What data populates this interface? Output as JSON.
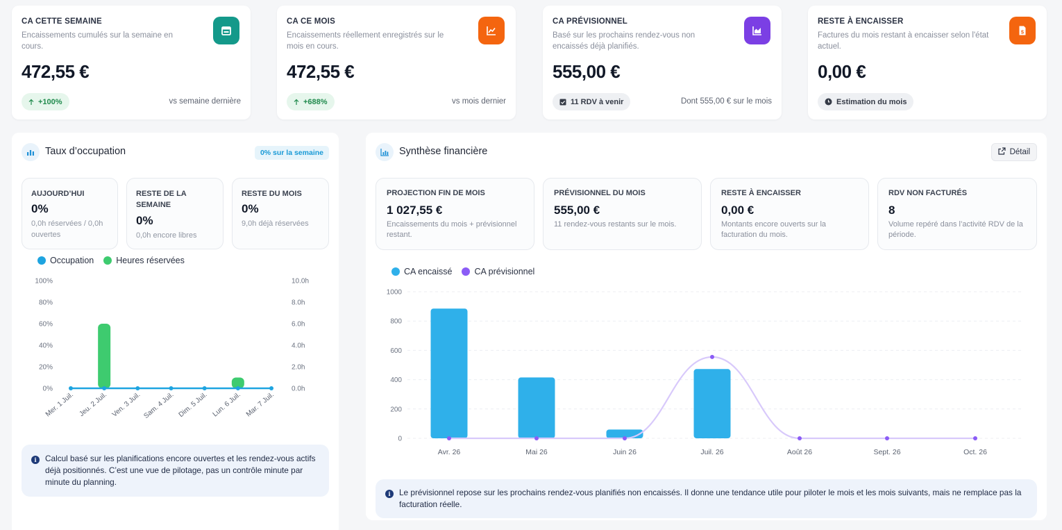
{
  "kpis": [
    {
      "title": "CA CETTE SEMAINE",
      "desc": "Encaissements cumulés sur la semaine en cours.",
      "value": "472,55 €",
      "badge": "+100%",
      "badge_icon": "arrow-up-icon",
      "compare": "vs semaine dernière",
      "icon": "calendar-icon",
      "color": "#14998a"
    },
    {
      "title": "CA CE MOIS",
      "desc": "Encaissements réellement enregistrés sur le mois en cours.",
      "value": "472,55 €",
      "badge": "+688%",
      "badge_icon": "arrow-up-icon",
      "compare": "vs mois dernier",
      "icon": "trend-line-icon",
      "color": "#f4650f"
    },
    {
      "title": "CA PRÉVISIONNEL",
      "desc": "Basé sur les prochains rendez-vous non encaissés déjà planifiés.",
      "value": "555,00 €",
      "badge": "11 RDV à venir",
      "badge_icon": "calendar-check-icon",
      "compare": "Dont 555,00 € sur le mois",
      "icon": "area-chart-icon",
      "color": "#7b3fe4"
    },
    {
      "title": "RESTE À ENCAISSER",
      "desc": "Factures du mois restant à encaisser selon l'état actuel.",
      "value": "0,00 €",
      "badge": "Estimation du mois",
      "badge_icon": "clock-icon",
      "compare": "",
      "icon": "invoice-dollar-icon",
      "color": "#f4650f"
    }
  ],
  "occupation": {
    "title": "Taux d’occupation",
    "chip": "0% sur la semaine",
    "stats": [
      {
        "title": "AUJOURD’HUI",
        "value": "0%",
        "sub": "0,0h réservées / 0,0h ouvertes"
      },
      {
        "title": "RESTE DE LA SEMAINE",
        "value": "0%",
        "sub": "0,0h encore libres"
      },
      {
        "title": "RESTE DU MOIS",
        "value": "0%",
        "sub": "9,0h déjà réservées"
      }
    ],
    "legend": [
      "Occupation",
      "Heures réservées"
    ],
    "colors": {
      "occupation": "#1ea4e0",
      "hours": "#3ecb6f"
    },
    "info": "Calcul basé sur les planifications encore ouvertes et les rendez-vous actifs déjà positionnés. C’est une vue de pilotage, pas un contrôle minute par minute du planning."
  },
  "finance": {
    "title": "Synthèse financière",
    "detail_label": "Détail",
    "tiles": [
      {
        "title": "PROJECTION FIN DE MOIS",
        "value": "1 027,55 €",
        "sub": "Encaissements du mois + prévisionnel restant."
      },
      {
        "title": "PRÉVISIONNEL DU MOIS",
        "value": "555,00 €",
        "sub": "11 rendez-vous restants sur le mois."
      },
      {
        "title": "RESTE À ENCAISSER",
        "value": "0,00 €",
        "sub": "Montants encore ouverts sur la facturation du mois."
      },
      {
        "title": "RDV NON FACTURÉS",
        "value": "8",
        "sub": "Volume repéré dans l’activité RDV de la période."
      }
    ],
    "legend": [
      "CA encaissé",
      "CA prévisionnel"
    ],
    "colors": {
      "cashed": "#2fb0ea",
      "forecast": "#8b5cf6"
    },
    "info": "Le prévisionnel repose sur les prochains rendez-vous planifiés non encaissés. Il donne une tendance utile pour piloter le mois et les mois suivants, mais ne remplace pas la facturation réelle."
  },
  "chart_data": [
    {
      "type": "bar",
      "title": "",
      "categories": [
        "Mer. 1 Juil.",
        "Jeu. 2 Juil.",
        "Ven. 3 Juil.",
        "Sam. 4 Juil.",
        "Dim. 5 Juil.",
        "Lun. 6 Juil.",
        "Mar. 7 Juil."
      ],
      "series": [
        {
          "name": "Occupation",
          "type": "line",
          "axis": "left",
          "values": [
            0,
            0,
            0,
            0,
            0,
            0,
            0
          ]
        },
        {
          "name": "Heures réservées",
          "type": "bar",
          "axis": "right",
          "values": [
            0,
            6.0,
            0,
            0,
            0,
            1.0,
            0
          ]
        }
      ],
      "ylim_left": [
        0,
        100
      ],
      "yticks_left": [
        "0%",
        "20%",
        "40%",
        "60%",
        "80%",
        "100%"
      ],
      "ylim_right": [
        0,
        10
      ],
      "yticks_right": [
        "0.0h",
        "2.0h",
        "4.0h",
        "6.0h",
        "8.0h",
        "10.0h"
      ],
      "grid": false
    },
    {
      "type": "bar",
      "title": "",
      "categories": [
        "Avr. 26",
        "Mai 26",
        "Juin 26",
        "Juil. 26",
        "Août 26",
        "Sept. 26",
        "Oct. 26"
      ],
      "series": [
        {
          "name": "CA encaissé",
          "type": "bar",
          "values": [
            885,
            415,
            60,
            472.55,
            0,
            0,
            0
          ]
        },
        {
          "name": "CA prévisionnel",
          "type": "line",
          "values": [
            0,
            0,
            0,
            555,
            0,
            0,
            0
          ]
        }
      ],
      "ylim": [
        0,
        1000
      ],
      "yticks": [
        "0",
        "200",
        "400",
        "600",
        "800",
        "1000"
      ],
      "grid": true
    }
  ]
}
